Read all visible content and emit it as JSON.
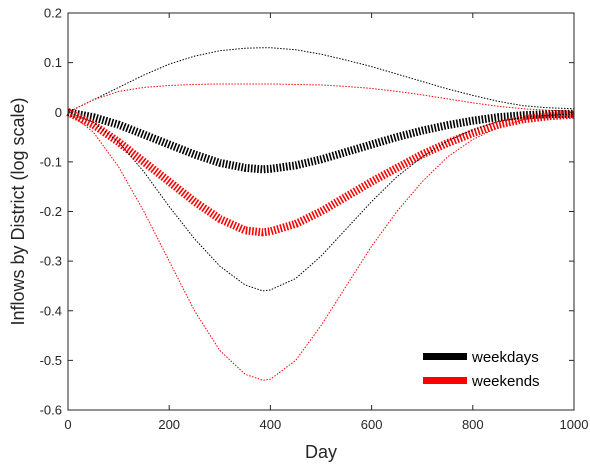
{
  "chart_data": {
    "type": "line",
    "title": "",
    "xlabel": "Day",
    "ylabel": "Inflows by District (log scale)",
    "xlim": [
      0,
      1000
    ],
    "ylim": [
      -0.6,
      0.2
    ],
    "xticks": [
      0,
      200,
      400,
      600,
      800,
      1000
    ],
    "yticks": [
      0.2,
      0.1,
      0,
      -0.1,
      -0.2,
      -0.3,
      -0.4,
      -0.5,
      -0.6
    ],
    "xtick_labels": [
      "0",
      "200",
      "400",
      "600",
      "800",
      "1000"
    ],
    "ytick_labels": [
      "0.2",
      "0.1",
      "0",
      "-0.1",
      "-0.2",
      "-0.3",
      "-0.4",
      "-0.5",
      "-0.6"
    ],
    "grid": false,
    "legend_position": "bottom-right",
    "x": [
      0,
      50,
      100,
      150,
      200,
      250,
      300,
      350,
      385,
      400,
      450,
      500,
      550,
      600,
      650,
      700,
      750,
      800,
      850,
      900,
      950,
      1000
    ],
    "series": [
      {
        "name": "weekdays",
        "role": "estimate",
        "color": "#000000",
        "values": [
          0,
          -0.01,
          -0.025,
          -0.045,
          -0.065,
          -0.085,
          -0.102,
          -0.112,
          -0.115,
          -0.114,
          -0.107,
          -0.095,
          -0.08,
          -0.065,
          -0.05,
          -0.037,
          -0.026,
          -0.017,
          -0.01,
          -0.006,
          -0.004,
          -0.003
        ]
      },
      {
        "name": "weekends",
        "role": "estimate",
        "color": "#ff0000",
        "values": [
          0,
          -0.025,
          -0.06,
          -0.1,
          -0.14,
          -0.18,
          -0.215,
          -0.238,
          -0.242,
          -0.24,
          -0.225,
          -0.2,
          -0.17,
          -0.14,
          -0.112,
          -0.085,
          -0.062,
          -0.042,
          -0.025,
          -0.014,
          -0.008,
          -0.005
        ]
      },
      {
        "role": "upper-bound",
        "color": "#000000",
        "values": [
          0,
          0.025,
          0.05,
          0.075,
          0.097,
          0.113,
          0.124,
          0.129,
          0.13,
          0.13,
          0.126,
          0.117,
          0.105,
          0.092,
          0.077,
          0.062,
          0.047,
          0.034,
          0.022,
          0.013,
          0.009,
          0.007
        ]
      },
      {
        "role": "lower-bound",
        "color": "#000000",
        "values": [
          0,
          -0.02,
          -0.06,
          -0.12,
          -0.19,
          -0.255,
          -0.31,
          -0.348,
          -0.36,
          -0.358,
          -0.335,
          -0.29,
          -0.235,
          -0.18,
          -0.13,
          -0.09,
          -0.058,
          -0.035,
          -0.019,
          -0.01,
          -0.006,
          -0.004
        ]
      },
      {
        "role": "upper-bound",
        "color": "#ff0000",
        "values": [
          0,
          0.025,
          0.042,
          0.05,
          0.054,
          0.056,
          0.057,
          0.057,
          0.057,
          0.057,
          0.056,
          0.055,
          0.052,
          0.048,
          0.042,
          0.035,
          0.027,
          0.019,
          0.012,
          0.007,
          0.004,
          0.002
        ]
      },
      {
        "role": "lower-bound",
        "color": "#ff0000",
        "values": [
          0,
          -0.04,
          -0.11,
          -0.2,
          -0.3,
          -0.4,
          -0.48,
          -0.528,
          -0.54,
          -0.538,
          -0.5,
          -0.43,
          -0.35,
          -0.27,
          -0.2,
          -0.14,
          -0.09,
          -0.055,
          -0.03,
          -0.015,
          -0.008,
          -0.005
        ]
      }
    ]
  }
}
